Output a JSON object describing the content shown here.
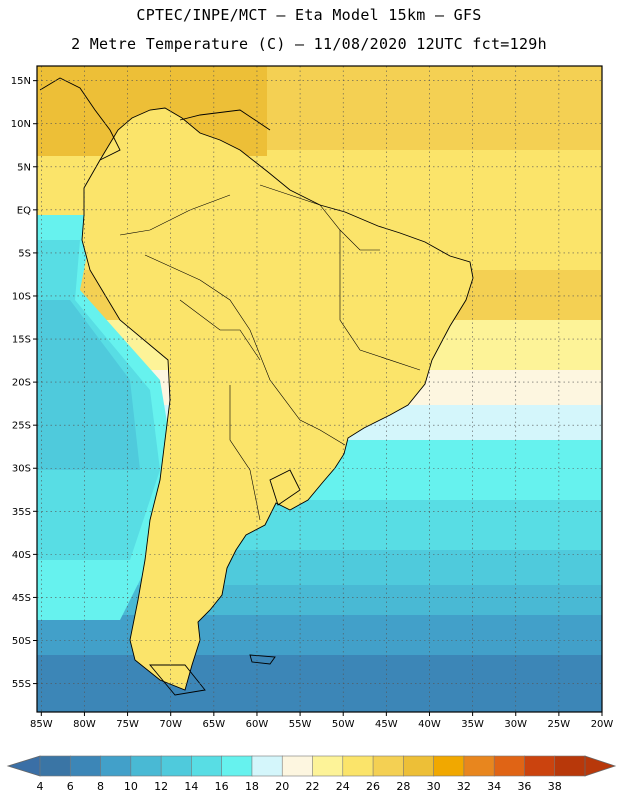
{
  "header": {
    "line1": "CPTEC/INPE/MCT –  Eta Model 15km – GFS",
    "line2": "2 Metre Temperature (C) – 11/08/2020 12UTC fct=129h"
  },
  "map": {
    "lat_labels": [
      "15N",
      "10N",
      "5N",
      "EQ",
      "5S",
      "10S",
      "15S",
      "20S",
      "25S",
      "30S",
      "35S",
      "40S",
      "45S",
      "50S",
      "55S"
    ],
    "lon_labels": [
      "85W",
      "80W",
      "75W",
      "70W",
      "65W",
      "60W",
      "55W",
      "50W",
      "45W",
      "40W",
      "35W",
      "30W",
      "25W",
      "20W"
    ],
    "lat_range": [
      16.7,
      -58.3
    ],
    "lon_range": [
      -85.5,
      -20.0
    ]
  },
  "colorbar": {
    "labels": [
      "4",
      "6",
      "8",
      "10",
      "12",
      "14",
      "16",
      "18",
      "20",
      "22",
      "24",
      "26",
      "28",
      "30",
      "32",
      "34",
      "36",
      "38"
    ],
    "colors": [
      "#3a75a5",
      "#3c86b7",
      "#42a0c9",
      "#49b9d4",
      "#4fcadc",
      "#58dde4",
      "#66f2ee",
      "#d4f6fb",
      "#fdf6e0",
      "#fdf398",
      "#fbe46a",
      "#f4d053",
      "#edbf37",
      "#f1a800",
      "#e8861e",
      "#e06415",
      "#cb430e",
      "#b8380a"
    ],
    "under_color": "#3a6fa6",
    "over_color": "#b8380a"
  }
}
